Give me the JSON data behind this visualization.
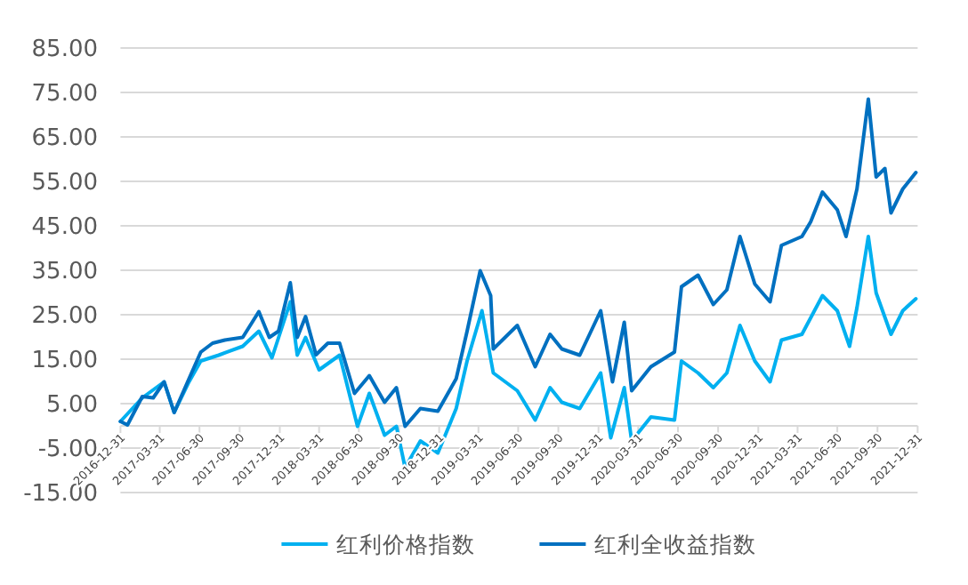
{
  "chart_data": {
    "type": "line",
    "ylim": [
      -15,
      85
    ],
    "yticks": [
      {
        "value": -15,
        "label": "-15.00"
      },
      {
        "value": -5,
        "label": "-5.00"
      },
      {
        "value": 5,
        "label": "5.00"
      },
      {
        "value": 15,
        "label": "15.00"
      },
      {
        "value": 25,
        "label": "25.00"
      },
      {
        "value": 35,
        "label": "35.00"
      },
      {
        "value": 45,
        "label": "45.00"
      },
      {
        "value": 55,
        "label": "55.00"
      },
      {
        "value": 65,
        "label": "65.00"
      },
      {
        "value": 75,
        "label": "75.00"
      },
      {
        "value": 85,
        "label": "85.00"
      }
    ],
    "xlim": [
      "2016-12-31",
      "2021-12-31"
    ],
    "xticks": [
      "2016-12-31",
      "2017-03-31",
      "2017-06-30",
      "2017-09-30",
      "2017-12-31",
      "2018-03-31",
      "2018-06-30",
      "2018-09-30",
      "2018-12-31",
      "2019-03-31",
      "2019-06-30",
      "2019-09-30",
      "2019-12-31",
      "2020-03-31",
      "2020-06-30",
      "2020-09-30",
      "2020-12-31",
      "2021-03-31",
      "2021-06-30",
      "2021-09-30",
      "2021-12-31"
    ],
    "grid": "y",
    "legend": "bottom",
    "series": [
      {
        "name": "红利价格指数",
        "color": "#00b0f0",
        "x": [
          "2016-12-31",
          "2017-02-19",
          "2017-04-10",
          "2017-05-03",
          "2017-06-06",
          "2017-07-03",
          "2017-08-13",
          "2017-10-07",
          "2017-11-13",
          "2017-12-13",
          "2018-01-24",
          "2018-02-09",
          "2018-02-28",
          "2018-03-31",
          "2018-05-17",
          "2018-06-27",
          "2018-07-24",
          "2018-08-28",
          "2018-09-24",
          "2018-10-14",
          "2018-11-18",
          "2018-12-28",
          "2019-02-08",
          "2019-03-05",
          "2019-04-08",
          "2019-05-04",
          "2019-06-28",
          "2019-08-08",
          "2019-09-11",
          "2019-10-08",
          "2019-11-18",
          "2020-01-05",
          "2020-01-28",
          "2020-02-28",
          "2020-03-16",
          "2020-04-29",
          "2020-06-22",
          "2020-07-08",
          "2020-08-15",
          "2020-09-19",
          "2020-10-20",
          "2020-11-19",
          "2020-12-23",
          "2021-01-27",
          "2021-02-22",
          "2021-04-10",
          "2021-05-27",
          "2021-06-30",
          "2021-07-28",
          "2021-08-14",
          "2021-09-09",
          "2021-09-27",
          "2021-10-31",
          "2021-11-27",
          "2021-12-27"
        ],
        "values": [
          1.0,
          6.3,
          9.9,
          3.0,
          9.9,
          14.6,
          15.9,
          17.9,
          21.3,
          15.3,
          27.9,
          15.9,
          19.9,
          12.6,
          15.9,
          -0.1,
          7.3,
          -2.1,
          -0.1,
          -9.4,
          -3.4,
          -6.1,
          3.9,
          14.6,
          25.9,
          11.9,
          7.9,
          1.3,
          8.6,
          5.3,
          3.9,
          11.9,
          -2.7,
          8.6,
          -3.4,
          2.0,
          1.3,
          14.6,
          11.9,
          8.6,
          11.9,
          22.6,
          14.6,
          9.9,
          19.3,
          20.6,
          29.3,
          25.9,
          17.9,
          26.6,
          42.6,
          29.9,
          20.6,
          25.9,
          28.6
        ]
      },
      {
        "name": "红利全收益指数",
        "color": "#0070c0",
        "x": [
          "2016-12-31",
          "2017-01-16",
          "2017-02-19",
          "2017-03-16",
          "2017-04-10",
          "2017-05-03",
          "2017-06-06",
          "2017-07-03",
          "2017-07-30",
          "2017-08-27",
          "2017-10-07",
          "2017-11-13",
          "2017-12-07",
          "2017-12-28",
          "2018-01-24",
          "2018-02-09",
          "2018-02-28",
          "2018-03-24",
          "2018-04-20",
          "2018-05-17",
          "2018-06-20",
          "2018-07-24",
          "2018-08-28",
          "2018-09-24",
          "2018-10-14",
          "2018-11-18",
          "2018-12-28",
          "2019-02-08",
          "2019-03-05",
          "2019-04-04",
          "2019-04-28",
          "2019-05-04",
          "2019-06-28",
          "2019-08-08",
          "2019-09-11",
          "2019-10-08",
          "2019-11-18",
          "2020-01-05",
          "2020-02-01",
          "2020-02-28",
          "2020-03-16",
          "2020-04-29",
          "2020-06-22",
          "2020-07-08",
          "2020-08-15",
          "2020-09-19",
          "2020-10-20",
          "2020-11-19",
          "2020-12-23",
          "2021-01-27",
          "2021-02-22",
          "2021-04-10",
          "2021-04-30",
          "2021-05-27",
          "2021-06-30",
          "2021-07-20",
          "2021-08-14",
          "2021-09-09",
          "2021-09-27",
          "2021-10-17",
          "2021-10-31",
          "2021-11-27",
          "2021-12-27"
        ],
        "values": [
          1.0,
          0.2,
          6.6,
          6.3,
          9.9,
          3.0,
          10.6,
          16.6,
          18.6,
          19.3,
          19.9,
          25.7,
          19.9,
          21.3,
          32.2,
          19.9,
          24.6,
          16.0,
          18.6,
          18.6,
          7.3,
          11.3,
          5.3,
          8.6,
          -0.1,
          3.9,
          3.3,
          10.6,
          21.3,
          34.9,
          29.3,
          17.3,
          22.6,
          13.3,
          20.6,
          17.3,
          15.9,
          25.9,
          9.9,
          23.3,
          7.9,
          13.3,
          16.6,
          31.3,
          33.9,
          27.3,
          30.6,
          42.6,
          31.9,
          27.9,
          40.6,
          42.6,
          45.9,
          52.6,
          48.6,
          42.6,
          53.3,
          73.5,
          56.0,
          57.9,
          47.9,
          53.3,
          57.0
        ]
      }
    ]
  }
}
